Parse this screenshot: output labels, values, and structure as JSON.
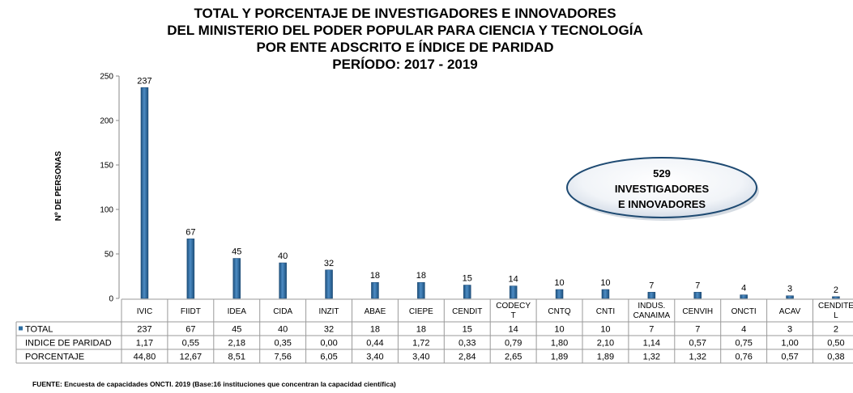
{
  "chart_data": {
    "type": "bar",
    "title_lines": [
      "TOTAL Y PORCENTAJE DE INVESTIGADORES E INNOVADORES",
      "DEL MINISTERIO DEL PODER POPULAR PARA CIENCIA Y TECNOLOGÍA",
      "POR ENTE ADSCRITO E ÍNDICE DE PARIDAD",
      "PERÍODO: 2017 -  2019"
    ],
    "ylabel": "Nº DE PERSONAS",
    "ylim": [
      0,
      250
    ],
    "yticks": [
      0,
      50,
      100,
      150,
      200,
      250
    ],
    "grid": false,
    "categories": [
      "IVIC",
      "FIIDT",
      "IDEA",
      "CIDA",
      "INZIT",
      "ABAE",
      "CIEPE",
      "CENDIT",
      "CODECY T",
      "CNTQ",
      "CNTI",
      "INDUS. CANAIMA",
      "CENVIH",
      "ONCTI",
      "ACAV",
      "CENDITE L"
    ],
    "series": [
      {
        "name": "TOTAL",
        "values": [
          237,
          67,
          45,
          40,
          32,
          18,
          18,
          15,
          14,
          10,
          10,
          7,
          7,
          4,
          3,
          2
        ]
      }
    ],
    "table_rows": [
      {
        "label": "TOTAL",
        "values": [
          "237",
          "67",
          "45",
          "40",
          "32",
          "18",
          "18",
          "15",
          "14",
          "10",
          "10",
          "7",
          "7",
          "4",
          "3",
          "2"
        ]
      },
      {
        "label": "INDICE DE PARIDAD",
        "values": [
          "1,17",
          "0,55",
          "2,18",
          "0,35",
          "0,00",
          "0,44",
          "1,72",
          "0,33",
          "0,79",
          "1,80",
          "2,10",
          "1,14",
          "0,57",
          "0,75",
          "1,00",
          "0,50"
        ]
      },
      {
        "label": "PORCENTAJE",
        "values": [
          "44,80",
          "12,67",
          "8,51",
          "7,56",
          "6,05",
          "3,40",
          "3,40",
          "2,84",
          "2,65",
          "1,89",
          "1,89",
          "1,32",
          "1,32",
          "0,76",
          "0,57",
          "0,38"
        ]
      }
    ],
    "annotation": {
      "lines": [
        "529",
        "INVESTIGADORES",
        "E INNOVADORES"
      ]
    },
    "bar_color": "#2e6fa3",
    "source": "FUENTE: Encuesta de capacidades ONCTI. 2019 (Base:16 instituciones que concentran la capacidad científica)"
  }
}
